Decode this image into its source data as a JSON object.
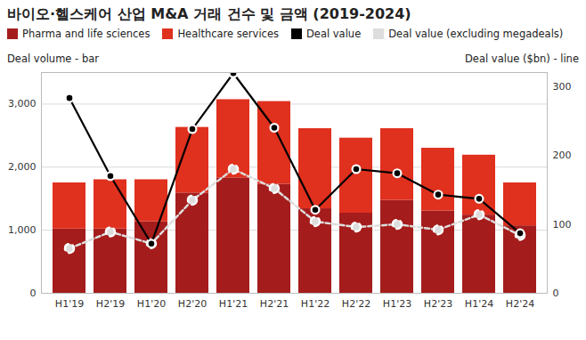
{
  "chart_data": {
    "type": "bar",
    "title": "바이오·헬스케어 산업 M&A 거래 건수 및 금액 (2019-2024)",
    "y_label": "Deal volume - bar",
    "y2_label": "Deal value ($bn) - line",
    "categories": [
      "H1'19",
      "H2'19",
      "H1'20",
      "H2'20",
      "H1'21",
      "H2'21",
      "H1'22",
      "H2'22",
      "H1'23",
      "H2'23",
      "H1'24",
      "H2'24"
    ],
    "stacked": true,
    "grid": true,
    "ylim": [
      0,
      3500
    ],
    "yticks": [
      0,
      {
        "value": 1000,
        "label": "1,000"
      },
      {
        "value": 2000,
        "label": "2,000"
      },
      {
        "value": 3000,
        "label": "3,000"
      }
    ],
    "y2lim": [
      0,
      320
    ],
    "y2ticks": [
      0,
      100,
      200,
      300
    ],
    "series": [
      {
        "name": "Pharma and life sciences",
        "type": "bar",
        "color": "#a51c1c",
        "values": [
          1020,
          1020,
          1135,
          1590,
          1830,
          1730,
          1340,
          1270,
          1475,
          1305,
          1240,
          1070
        ]
      },
      {
        "name": "Healthcare services",
        "type": "bar",
        "color": "#e0301e",
        "values": [
          730,
          780,
          665,
          1040,
          1240,
          1310,
          1270,
          1190,
          1135,
          995,
          950,
          680
        ]
      },
      {
        "name": "Deal value",
        "type": "line",
        "axis": "y2",
        "color": "#000000",
        "marker": "circle",
        "line_style": "solid",
        "values": [
          283,
          170,
          72,
          238,
          319,
          240,
          121,
          180,
          174,
          143,
          137,
          87
        ]
      },
      {
        "name": "Deal value (excluding megadeals)",
        "type": "line",
        "axis": "y2",
        "color": "#dddddd",
        "marker": "circle",
        "line_style": "dashed",
        "values": [
          65,
          89,
          72,
          135,
          180,
          152,
          104,
          96,
          100,
          92,
          114,
          84
        ]
      }
    ]
  }
}
